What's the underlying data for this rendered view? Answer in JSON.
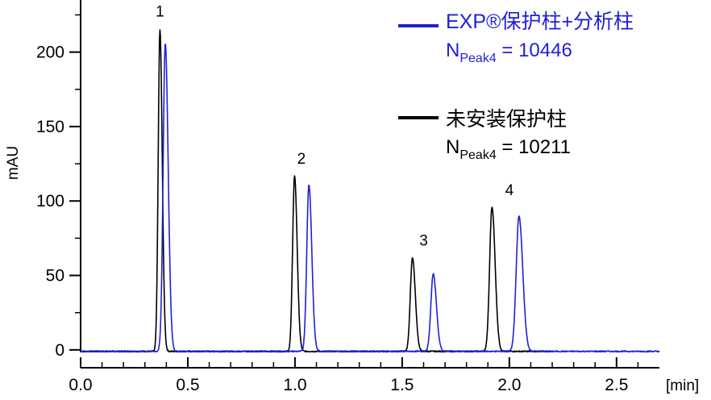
{
  "chart_data": {
    "type": "line",
    "title": "",
    "xlabel": "[min]",
    "ylabel": "mAU",
    "xlim": [
      0.0,
      2.7
    ],
    "ylim": [
      -12,
      235
    ],
    "x_ticks": [
      0.0,
      0.5,
      1.0,
      1.5,
      2.0,
      2.5
    ],
    "x_tick_labels": [
      "0.0",
      "0.5",
      "1.0",
      "1.5",
      "2.0",
      "2.5"
    ],
    "y_ticks": [
      0,
      50,
      100,
      150,
      200
    ],
    "y_tick_labels": [
      "0",
      "50",
      "100",
      "150",
      "200"
    ],
    "grid": false,
    "legend_position": "top-right",
    "series": [
      {
        "name": "EXP®保护柱+分析柱",
        "color": "#1f1fd8",
        "baseline": -1,
        "end_time": 2.7,
        "peaks": [
          {
            "time": 0.395,
            "height": 207,
            "width": 0.01
          },
          {
            "time": 1.065,
            "height": 112,
            "width": 0.01
          },
          {
            "time": 1.645,
            "height": 52,
            "width": 0.011
          },
          {
            "time": 2.045,
            "height": 91,
            "width": 0.013
          }
        ]
      },
      {
        "name": "未安装保护柱",
        "color": "#000000",
        "baseline": -1,
        "end_time": 2.2,
        "peaks": [
          {
            "time": 0.37,
            "height": 216,
            "width": 0.008
          },
          {
            "time": 0.998,
            "height": 118,
            "width": 0.009
          },
          {
            "time": 1.548,
            "height": 63,
            "width": 0.01
          },
          {
            "time": 1.919,
            "height": 97,
            "width": 0.011
          }
        ]
      }
    ],
    "peak_labels": [
      {
        "text": "1",
        "x": 0.37,
        "y": 224
      },
      {
        "text": "2",
        "x": 1.03,
        "y": 125
      },
      {
        "text": "3",
        "x": 1.6,
        "y": 70
      },
      {
        "text": "4",
        "x": 2.0,
        "y": 104
      }
    ],
    "legend_notes": [
      {
        "prefix": "N",
        "subscript": "Peak4",
        "value": " = 10446"
      },
      {
        "prefix": "N",
        "subscript": "Peak4",
        "value": " = 10211"
      }
    ]
  }
}
